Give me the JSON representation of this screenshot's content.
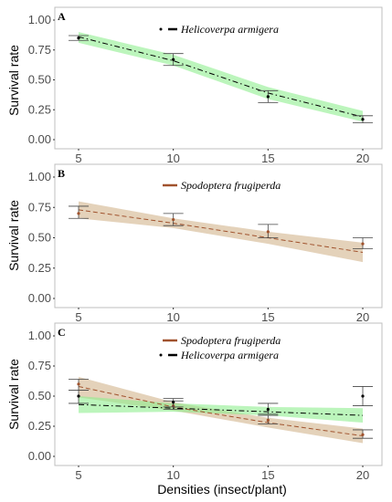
{
  "chart_data": [
    {
      "type": "line",
      "panel_label": "A",
      "x": [
        5,
        10,
        15,
        20
      ],
      "xlim": [
        4,
        21
      ],
      "ylim": [
        0,
        1.05
      ],
      "y_ticks": [
        "0.00",
        "0.25",
        "0.50",
        "0.75",
        "1.00"
      ],
      "x_ticks": [
        "5",
        "10",
        "15",
        "20"
      ],
      "ylabel": "Survival rate",
      "legend_position": "top-center",
      "series": [
        {
          "name": "Helicoverpa armigera",
          "color": "#000000",
          "band_color": "#90ee90",
          "line_style": "dash-dot",
          "fit": [
            0.86,
            0.66,
            0.39,
            0.19
          ],
          "ci_low": [
            0.81,
            0.62,
            0.34,
            0.15
          ],
          "ci_high": [
            0.9,
            0.71,
            0.44,
            0.24
          ],
          "points": [
            0.85,
            0.67,
            0.36,
            0.17
          ],
          "err_low": [
            0.83,
            0.62,
            0.31,
            0.14
          ],
          "err_high": [
            0.87,
            0.72,
            0.41,
            0.2
          ]
        }
      ]
    },
    {
      "type": "line",
      "panel_label": "B",
      "x": [
        5,
        10,
        15,
        20
      ],
      "xlim": [
        4,
        21
      ],
      "ylim": [
        0,
        1.05
      ],
      "y_ticks": [
        "0.00",
        "0.25",
        "0.50",
        "0.75",
        "1.00"
      ],
      "x_ticks": [
        "5",
        "10",
        "15",
        "20"
      ],
      "ylabel": "Survival rate",
      "legend_position": "top-center",
      "series": [
        {
          "name": "Spodoptera frugiperda",
          "color": "#a0522d",
          "band_color": "#d2b48c",
          "line_style": "dashed",
          "fit": [
            0.73,
            0.62,
            0.5,
            0.38
          ],
          "ci_low": [
            0.66,
            0.58,
            0.45,
            0.3
          ],
          "ci_high": [
            0.8,
            0.66,
            0.55,
            0.46
          ],
          "points": [
            0.7,
            0.65,
            0.55,
            0.45
          ],
          "err_low": [
            0.66,
            0.6,
            0.5,
            0.41
          ],
          "err_high": [
            0.76,
            0.7,
            0.61,
            0.5
          ]
        }
      ]
    },
    {
      "type": "line",
      "panel_label": "C",
      "x": [
        5,
        10,
        15,
        20
      ],
      "xlim": [
        4,
        21
      ],
      "ylim": [
        0,
        1.05
      ],
      "y_ticks": [
        "0.00",
        "0.25",
        "0.50",
        "0.75",
        "1.00"
      ],
      "x_ticks": [
        "5",
        "10",
        "15",
        "20"
      ],
      "ylabel": "Survival rate",
      "xlabel": "Densities (insect/plant)",
      "legend_position": "top-center",
      "series": [
        {
          "name": "Spodoptera frugiperda",
          "color": "#a0522d",
          "band_color": "#d2b48c",
          "line_style": "dashed",
          "fit": [
            0.58,
            0.41,
            0.28,
            0.17
          ],
          "ci_low": [
            0.49,
            0.38,
            0.24,
            0.11
          ],
          "ci_high": [
            0.66,
            0.45,
            0.32,
            0.23
          ],
          "points": [
            0.6,
            0.42,
            0.3,
            0.18
          ],
          "err_low": [
            0.55,
            0.39,
            0.27,
            0.15
          ],
          "err_high": [
            0.64,
            0.46,
            0.34,
            0.22
          ]
        },
        {
          "name": "Helicoverpa armigera",
          "color": "#000000",
          "band_color": "#90ee90",
          "line_style": "dash-dot",
          "fit": [
            0.43,
            0.4,
            0.37,
            0.34
          ],
          "ci_low": [
            0.36,
            0.37,
            0.34,
            0.28
          ],
          "ci_high": [
            0.5,
            0.44,
            0.41,
            0.4
          ],
          "points": [
            0.5,
            0.45,
            0.39,
            0.5
          ],
          "err_low": [
            0.44,
            0.41,
            0.35,
            0.42
          ],
          "err_high": [
            0.55,
            0.48,
            0.44,
            0.58
          ]
        }
      ]
    }
  ]
}
